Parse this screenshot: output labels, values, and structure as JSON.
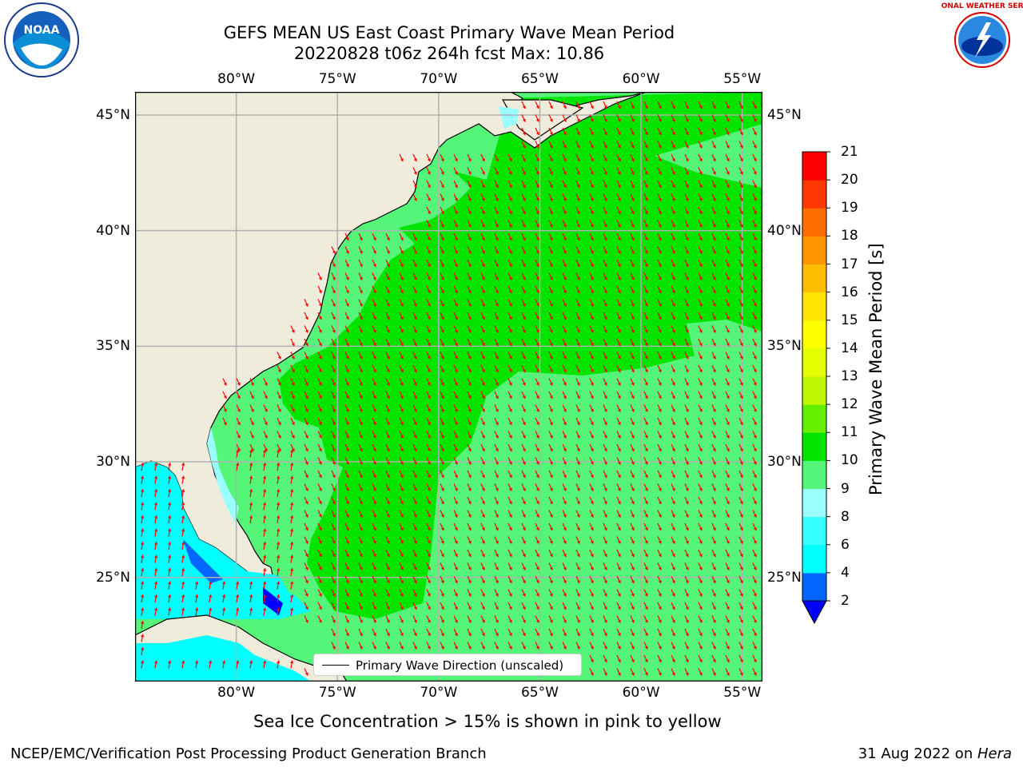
{
  "title": {
    "line1": "GEFS MEAN US East Coast Primary Wave Mean Period",
    "line2": "20220828 t06z 264h fcst   Max: 10.86"
  },
  "map": {
    "lon_ticks": [
      "80°W",
      "75°W",
      "70°W",
      "65°W",
      "60°W",
      "55°W"
    ],
    "lat_ticks": [
      "45°N",
      "40°N",
      "35°N",
      "30°N",
      "25°N"
    ],
    "lon_range": [
      -85,
      -54
    ],
    "lat_range": [
      20.5,
      46
    ],
    "colors": {
      "land": "#efecdc",
      "ocean_9_10": "#55f57a",
      "ocean_10_11": "#00e400",
      "shallow": "#00ffff",
      "arrow": "#ff0000"
    }
  },
  "legend": {
    "label": "Primary Wave Direction (unscaled)"
  },
  "colorbar": {
    "title": "Primary Wave Mean Period [s]",
    "levels": [
      "2",
      "4",
      "6",
      "8",
      "9",
      "10",
      "11",
      "12",
      "13",
      "14",
      "15",
      "16",
      "17",
      "18",
      "19",
      "20",
      "21"
    ],
    "colors": [
      "#0066ff",
      "#00ffff",
      "#33ffff",
      "#99ffff",
      "#55f57a",
      "#00e400",
      "#66ef00",
      "#bdf800",
      "#e5ff00",
      "#ffff00",
      "#ffe600",
      "#ffbe00",
      "#ff9600",
      "#ff6e00",
      "#ff3700",
      "#ff0000"
    ],
    "under_color": "#0000ff"
  },
  "logos": {
    "left": "noaa-logo",
    "left_text": "NOAA",
    "right": "nws-logo",
    "right_text": "NATIONAL WEATHER SERVICE"
  },
  "footer": {
    "note": "Sea Ice Concentration > 15% is shown in pink to yellow",
    "left": "NCEP/EMC/Verification Post Processing Product Generation Branch",
    "right_date": "31 Aug 2022 on ",
    "right_host": "Hera"
  }
}
